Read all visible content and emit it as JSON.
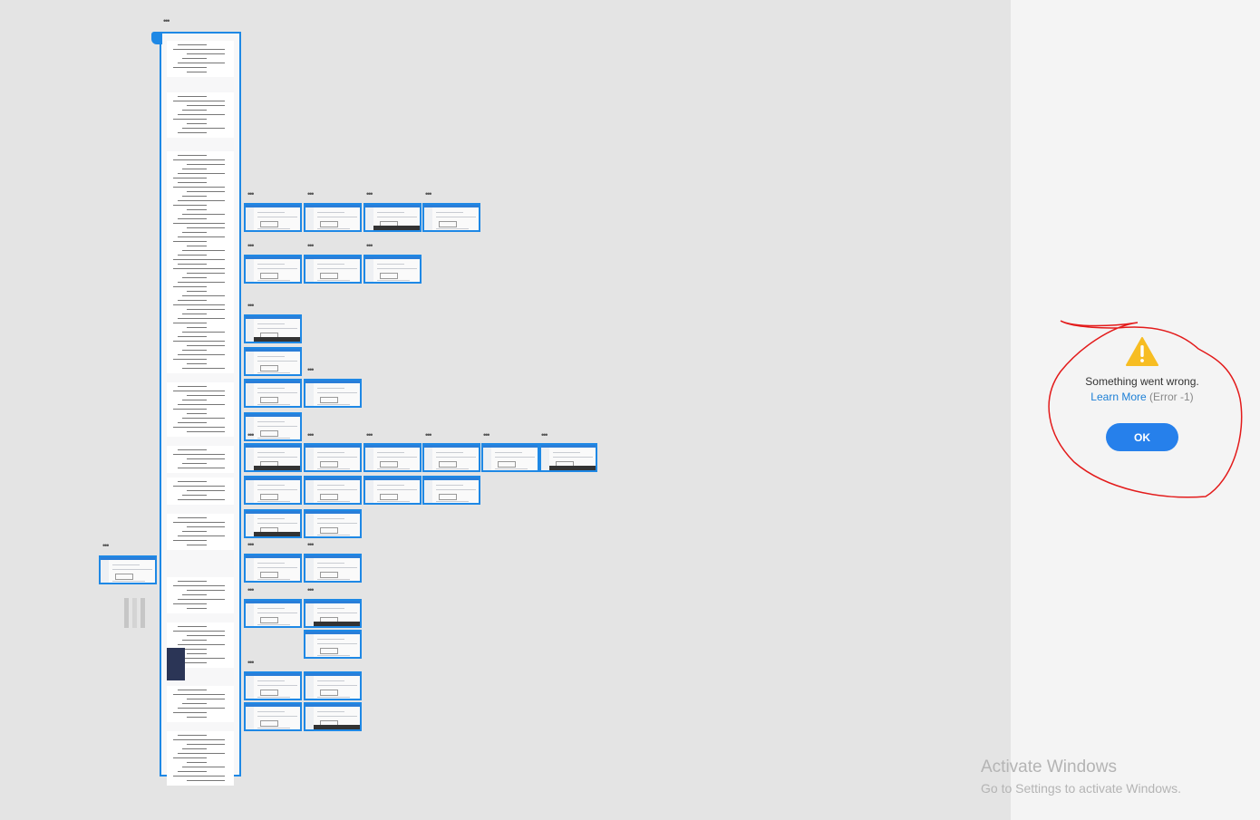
{
  "canvas": {
    "background": "#e4e4e4",
    "artboard_accent": "#1e88e5",
    "overflow_label": "•••"
  },
  "dialog": {
    "icon": "warning-triangle-icon",
    "message": "Something went wrong.",
    "learn_more": "Learn More",
    "error_code": "(Error -1)",
    "ok_label": "OK",
    "accent": "#2680eb"
  },
  "watermark": {
    "title": "Activate Windows",
    "subtitle": "Go to Settings to activate Windows."
  }
}
